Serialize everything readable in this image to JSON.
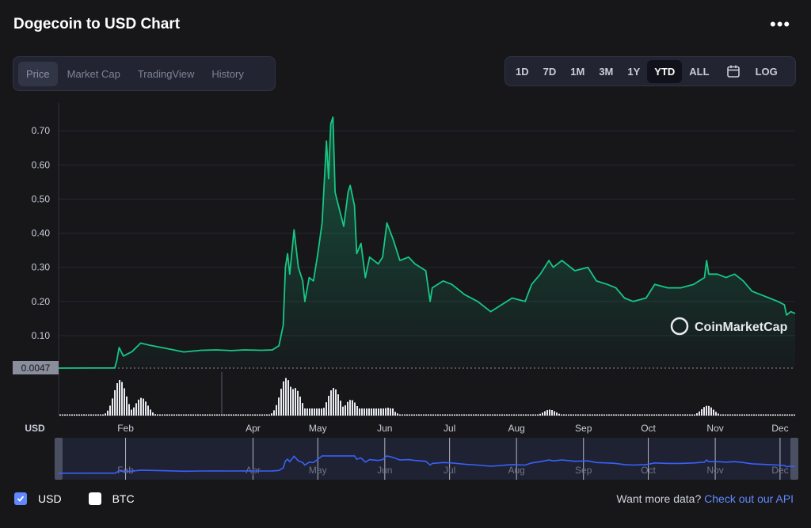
{
  "header": {
    "title": "Dogecoin to USD Chart"
  },
  "tabs": [
    {
      "label": "Price",
      "active": true
    },
    {
      "label": "Market Cap",
      "active": false
    },
    {
      "label": "TradingView",
      "active": false
    },
    {
      "label": "History",
      "active": false
    }
  ],
  "ranges": [
    {
      "label": "1D",
      "active": false
    },
    {
      "label": "7D",
      "active": false
    },
    {
      "label": "1M",
      "active": false
    },
    {
      "label": "3M",
      "active": false
    },
    {
      "label": "1Y",
      "active": false
    },
    {
      "label": "YTD",
      "active": true
    },
    {
      "label": "ALL",
      "active": false
    }
  ],
  "scale_label": "LOG",
  "watermark": "CoinMarketCap",
  "currency_axis_label": "USD",
  "colors": {
    "line": "#16c784",
    "volume": "#e7e9ee",
    "navigator": "#3861fb",
    "accent": "#6188ff"
  },
  "legend": [
    {
      "label": "USD",
      "checked": true
    },
    {
      "label": "BTC",
      "checked": false
    }
  ],
  "footer": {
    "prefix": "Want more data?",
    "link": "Check out our API"
  },
  "chart_data": {
    "type": "area",
    "x_unit": "date (2021)",
    "y_unit": "USD",
    "ylim": [
      0,
      0.74
    ],
    "y_ticks": [
      0.1,
      0.2,
      0.3,
      0.4,
      0.5,
      0.6,
      0.7
    ],
    "y_tick_labels": [
      "0.10",
      "0.20",
      "0.30",
      "0.40",
      "0.50",
      "0.60",
      "0.70"
    ],
    "x_range": [
      "2021-01-01",
      "2021-12-08"
    ],
    "x_ticks": [
      {
        "label": "Feb",
        "date": "2021-02-01"
      },
      {
        "label": "Apr",
        "date": "2021-04-01"
      },
      {
        "label": "May",
        "date": "2021-05-01"
      },
      {
        "label": "Jun",
        "date": "2021-06-01"
      },
      {
        "label": "Jul",
        "date": "2021-07-01"
      },
      {
        "label": "Aug",
        "date": "2021-08-01"
      },
      {
        "label": "Sep",
        "date": "2021-09-01"
      },
      {
        "label": "Oct",
        "date": "2021-10-01"
      },
      {
        "label": "Nov",
        "date": "2021-11-01"
      },
      {
        "label": "Dec",
        "date": "2021-12-01"
      }
    ],
    "baseline_label": "0.0047",
    "baseline_value": 0.0047,
    "grid": true,
    "series": [
      {
        "name": "USD",
        "points": [
          [
            "2021-01-01",
            0.0047
          ],
          [
            "2021-01-15",
            0.0049
          ],
          [
            "2021-01-27",
            0.0052
          ],
          [
            "2021-01-28",
            0.028
          ],
          [
            "2021-01-29",
            0.065
          ],
          [
            "2021-01-31",
            0.04
          ],
          [
            "2021-02-04",
            0.053
          ],
          [
            "2021-02-08",
            0.078
          ],
          [
            "2021-02-12",
            0.072
          ],
          [
            "2021-02-20",
            0.062
          ],
          [
            "2021-02-28",
            0.052
          ],
          [
            "2021-03-08",
            0.057
          ],
          [
            "2021-03-15",
            0.058
          ],
          [
            "2021-03-22",
            0.056
          ],
          [
            "2021-03-28",
            0.058
          ],
          [
            "2021-04-05",
            0.057
          ],
          [
            "2021-04-10",
            0.058
          ],
          [
            "2021-04-13",
            0.07
          ],
          [
            "2021-04-15",
            0.13
          ],
          [
            "2021-04-16",
            0.3
          ],
          [
            "2021-04-17",
            0.34
          ],
          [
            "2021-04-18",
            0.28
          ],
          [
            "2021-04-20",
            0.41
          ],
          [
            "2021-04-22",
            0.3
          ],
          [
            "2021-04-24",
            0.26
          ],
          [
            "2021-04-25",
            0.2
          ],
          [
            "2021-04-27",
            0.27
          ],
          [
            "2021-04-29",
            0.26
          ],
          [
            "2021-05-01",
            0.34
          ],
          [
            "2021-05-03",
            0.43
          ],
          [
            "2021-05-05",
            0.67
          ],
          [
            "2021-05-06",
            0.56
          ],
          [
            "2021-05-07",
            0.72
          ],
          [
            "2021-05-08",
            0.74
          ],
          [
            "2021-05-09",
            0.52
          ],
          [
            "2021-05-11",
            0.47
          ],
          [
            "2021-05-13",
            0.42
          ],
          [
            "2021-05-15",
            0.52
          ],
          [
            "2021-05-16",
            0.54
          ],
          [
            "2021-05-18",
            0.48
          ],
          [
            "2021-05-19",
            0.34
          ],
          [
            "2021-05-21",
            0.37
          ],
          [
            "2021-05-23",
            0.27
          ],
          [
            "2021-05-25",
            0.33
          ],
          [
            "2021-05-29",
            0.31
          ],
          [
            "2021-05-31",
            0.33
          ],
          [
            "2021-06-02",
            0.43
          ],
          [
            "2021-06-05",
            0.38
          ],
          [
            "2021-06-08",
            0.32
          ],
          [
            "2021-06-12",
            0.33
          ],
          [
            "2021-06-15",
            0.31
          ],
          [
            "2021-06-20",
            0.29
          ],
          [
            "2021-06-22",
            0.2
          ],
          [
            "2021-06-23",
            0.24
          ],
          [
            "2021-06-28",
            0.26
          ],
          [
            "2021-07-02",
            0.25
          ],
          [
            "2021-07-08",
            0.22
          ],
          [
            "2021-07-14",
            0.2
          ],
          [
            "2021-07-20",
            0.17
          ],
          [
            "2021-07-25",
            0.19
          ],
          [
            "2021-07-30",
            0.21
          ],
          [
            "2021-08-05",
            0.2
          ],
          [
            "2021-08-08",
            0.25
          ],
          [
            "2021-08-12",
            0.28
          ],
          [
            "2021-08-16",
            0.32
          ],
          [
            "2021-08-18",
            0.3
          ],
          [
            "2021-08-22",
            0.32
          ],
          [
            "2021-08-28",
            0.29
          ],
          [
            "2021-09-03",
            0.3
          ],
          [
            "2021-09-07",
            0.26
          ],
          [
            "2021-09-12",
            0.25
          ],
          [
            "2021-09-16",
            0.24
          ],
          [
            "2021-09-20",
            0.21
          ],
          [
            "2021-09-24",
            0.2
          ],
          [
            "2021-09-30",
            0.21
          ],
          [
            "2021-10-04",
            0.25
          ],
          [
            "2021-10-10",
            0.24
          ],
          [
            "2021-10-16",
            0.24
          ],
          [
            "2021-10-22",
            0.25
          ],
          [
            "2021-10-27",
            0.27
          ],
          [
            "2021-10-28",
            0.32
          ],
          [
            "2021-10-29",
            0.28
          ],
          [
            "2021-11-02",
            0.28
          ],
          [
            "2021-11-06",
            0.27
          ],
          [
            "2021-11-10",
            0.28
          ],
          [
            "2021-11-14",
            0.26
          ],
          [
            "2021-11-18",
            0.23
          ],
          [
            "2021-11-22",
            0.22
          ],
          [
            "2021-11-26",
            0.21
          ],
          [
            "2021-11-30",
            0.2
          ],
          [
            "2021-12-03",
            0.19
          ],
          [
            "2021-12-04",
            0.16
          ],
          [
            "2021-12-06",
            0.17
          ],
          [
            "2021-12-08",
            0.165
          ]
        ]
      }
    ],
    "volume": {
      "note": "relative volume bars under price line",
      "peaks": [
        [
          "2021-01-29",
          0.9
        ],
        [
          "2021-02-08",
          0.45
        ],
        [
          "2021-04-16",
          0.95
        ],
        [
          "2021-04-20",
          0.7
        ],
        [
          "2021-05-08",
          0.7
        ],
        [
          "2021-05-16",
          0.4
        ],
        [
          "2021-06-02",
          0.2
        ],
        [
          "2021-08-16",
          0.15
        ],
        [
          "2021-10-28",
          0.25
        ]
      ]
    },
    "navigator": {
      "series": "USD",
      "x_tick_labels": [
        "Feb",
        "Apr",
        "May",
        "Jun",
        "Jul",
        "Aug",
        "Sep",
        "Oct",
        "Nov",
        "Dec"
      ]
    }
  }
}
